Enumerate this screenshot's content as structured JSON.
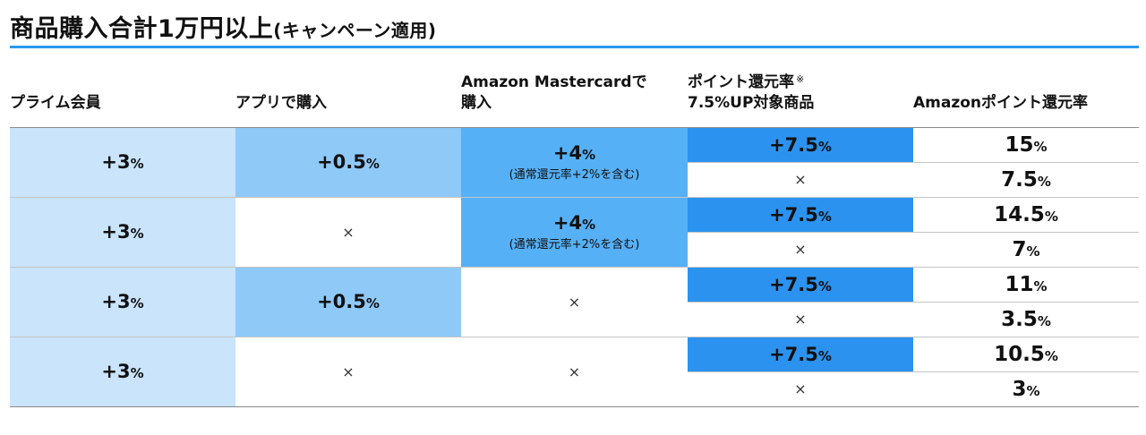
{
  "title": {
    "main": "商品購入合計1万円以上",
    "sub": "(キャンペーン適用)"
  },
  "headers": {
    "prime": "プライム会員",
    "app": "アプリで購入",
    "card_line1": "Amazon Mastercardで",
    "card_line2": "購入",
    "item_line1": "ポイント還元率",
    "item_mark": "※",
    "item_line2": "7.5%UP対象商品",
    "total": "Amazonポイント還元率"
  },
  "colors": {
    "rule": "#2b9aef",
    "prime": "#c9e4fb",
    "app": "#8fc9f8",
    "card": "#56b0f6",
    "item": "#2b93ef"
  },
  "rows": [
    {
      "prime": {
        "num": "+3",
        "pct": "%"
      },
      "app": {
        "num": "+0.5",
        "pct": "%"
      },
      "card": {
        "num": "+4",
        "pct": "%",
        "note": "(通常還元率+2%を含む)"
      },
      "item_yes": {
        "num": "+7.5",
        "pct": "%"
      },
      "item_no": "×",
      "total_yes": {
        "num": "15",
        "pct": "%"
      },
      "total_no": {
        "num": "7.5",
        "pct": "%"
      }
    },
    {
      "prime": {
        "num": "+3",
        "pct": "%"
      },
      "app": "×",
      "card": {
        "num": "+4",
        "pct": "%",
        "note": "(通常還元率+2%を含む)"
      },
      "item_yes": {
        "num": "+7.5",
        "pct": "%"
      },
      "item_no": "×",
      "total_yes": {
        "num": "14.5",
        "pct": "%"
      },
      "total_no": {
        "num": "7",
        "pct": "%"
      }
    },
    {
      "prime": {
        "num": "+3",
        "pct": "%"
      },
      "app": {
        "num": "+0.5",
        "pct": "%"
      },
      "card": "×",
      "item_yes": {
        "num": "+7.5",
        "pct": "%"
      },
      "item_no": "×",
      "total_yes": {
        "num": "11",
        "pct": "%"
      },
      "total_no": {
        "num": "3.5",
        "pct": "%"
      }
    },
    {
      "prime": {
        "num": "+3",
        "pct": "%"
      },
      "app": "×",
      "card": "×",
      "item_yes": {
        "num": "+7.5",
        "pct": "%"
      },
      "item_no": "×",
      "total_yes": {
        "num": "10.5",
        "pct": "%"
      },
      "total_no": {
        "num": "3",
        "pct": "%"
      }
    }
  ]
}
